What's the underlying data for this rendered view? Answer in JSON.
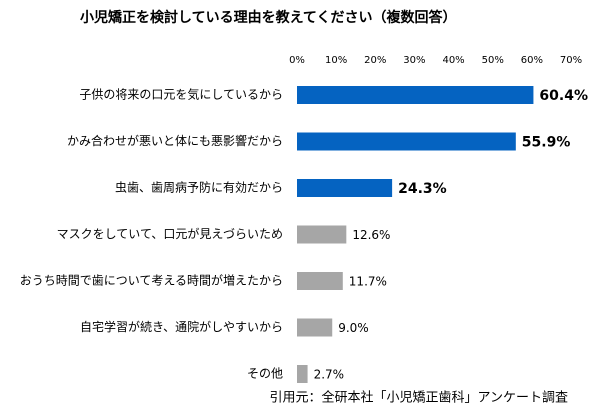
{
  "chart_data": {
    "type": "bar",
    "orientation": "horizontal",
    "title": "小児矯正を検討している理由を教えてください（複数回答）",
    "categories": [
      "子供の将来の口元を気にしているから",
      "かみ合わせが悪いと体にも悪影響だから",
      "虫歯、歯周病予防に有効だから",
      "マスクをしていて、口元が見えづらいため",
      "おうち時間で歯について考える時間が増えたから",
      "自宅学習が続き、通院がしやすいから",
      "その他"
    ],
    "values": [
      60.4,
      55.9,
      24.3,
      12.6,
      11.7,
      9.0,
      2.7
    ],
    "value_labels": [
      "60.4%",
      "55.9%",
      "24.3%",
      "12.6%",
      "11.7%",
      "9.0%",
      "2.7%"
    ],
    "colors": [
      "#0563c1",
      "#0563c1",
      "#0563c1",
      "#a6a6a6",
      "#a6a6a6",
      "#a6a6a6",
      "#a6a6a6"
    ],
    "xlim": [
      0,
      70
    ],
    "xticks": [
      {
        "value": 0,
        "label": "0%"
      },
      {
        "value": 10,
        "label": "10%"
      },
      {
        "value": 20,
        "label": "20%"
      },
      {
        "value": 30,
        "label": "30%"
      },
      {
        "value": 40,
        "label": "40%"
      },
      {
        "value": 50,
        "label": "50%"
      },
      {
        "value": 60,
        "label": "60%"
      },
      {
        "value": 70,
        "label": "70%"
      }
    ],
    "xaxis_position": "top",
    "grid": false,
    "source": "引用元：全研本社「小児矯正歯科」アンケート調査"
  }
}
